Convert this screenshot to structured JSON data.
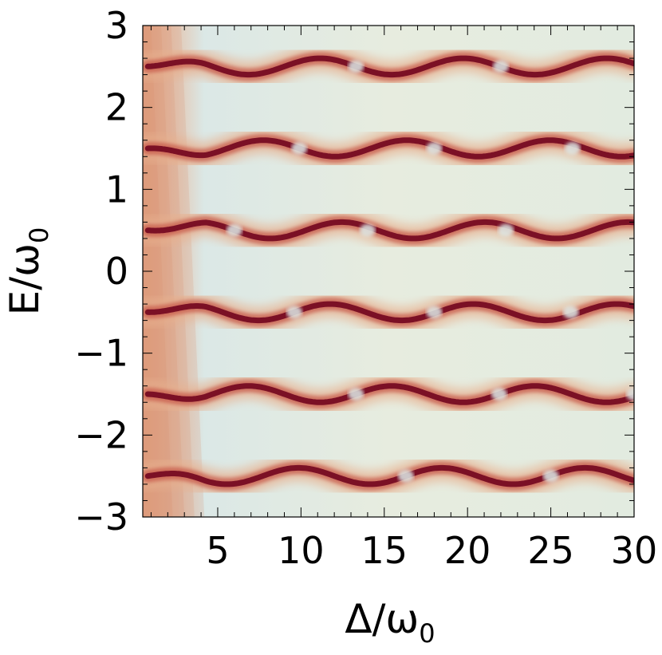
{
  "chart_data": {
    "type": "heatmap",
    "title": "",
    "xlabel": {
      "base": "Δ/ω",
      "sub": "0"
    },
    "ylabel": {
      "base": "E/ω",
      "sub": "0"
    },
    "xlim": [
      0.5,
      30
    ],
    "ylim": [
      -3,
      3
    ],
    "x_ticks": [
      5,
      10,
      15,
      20,
      25,
      30
    ],
    "x_tick_labels": [
      "5",
      "10",
      "15",
      "20",
      "25",
      "30"
    ],
    "y_ticks": [
      3,
      2,
      1,
      0,
      -1,
      -2,
      -3
    ],
    "y_tick_labels": [
      "3",
      "2",
      "1",
      "0",
      "−1",
      "−2",
      "−3"
    ],
    "colormap": {
      "low": "#cfe4ea",
      "mid": "#f2ead6",
      "high": "#7b1025"
    },
    "bands": [
      {
        "name": "",
        "center": 2.5,
        "amplitude": 0.1,
        "period": 8.6,
        "crossings": [
          13.3,
          22.0
        ]
      },
      {
        "name": "",
        "center": 1.5,
        "amplitude": 0.1,
        "period": 8.6,
        "crossings": [
          9.9,
          18.0,
          26.3
        ]
      },
      {
        "name": "",
        "center": 0.5,
        "amplitude": 0.1,
        "period": 8.6,
        "crossings": [
          6.0,
          14.0,
          22.3
        ]
      },
      {
        "name": "",
        "center": -0.5,
        "amplitude": 0.1,
        "period": 8.6,
        "crossings": [
          9.6,
          18.0,
          26.2
        ]
      },
      {
        "name": "",
        "center": -1.5,
        "amplitude": 0.1,
        "period": 8.6,
        "crossings": [
          13.3,
          21.9,
          30.0
        ]
      },
      {
        "name": "",
        "center": -2.5,
        "amplitude": 0.1,
        "period": 8.6,
        "crossings": [
          16.3,
          25.0
        ]
      }
    ]
  }
}
